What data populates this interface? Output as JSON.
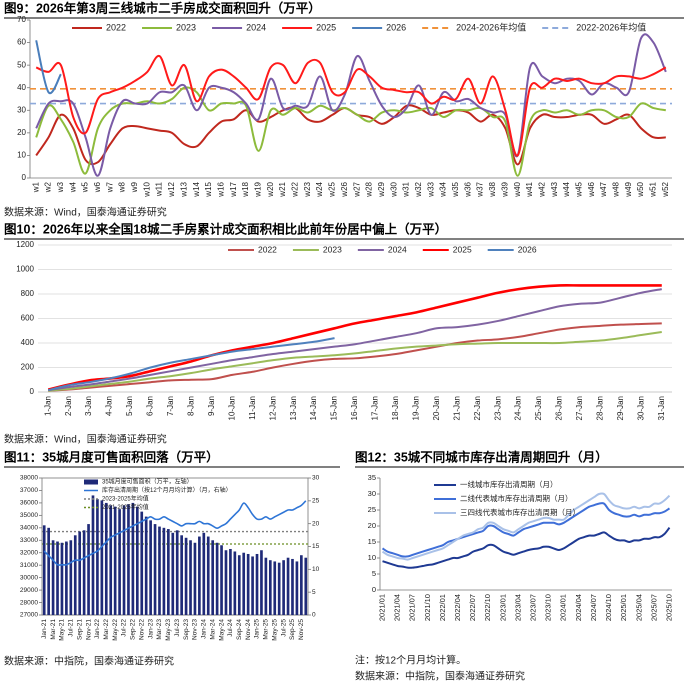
{
  "chart_data": [
    {
      "type": "line",
      "title": "图9：2026年第3周三线城市二手房成交面积回升（万平）",
      "source": "数据来源：Wind，国泰海通证券研究",
      "categories": [
        "w1",
        "w2",
        "w3",
        "w4",
        "w5",
        "w6",
        "w7",
        "w8",
        "w9",
        "w10",
        "w11",
        "w12",
        "w13",
        "w14",
        "w15",
        "w16",
        "w17",
        "w18",
        "w19",
        "w20",
        "w21",
        "w22",
        "w23",
        "w24",
        "w25",
        "w26",
        "w27",
        "w28",
        "w29",
        "w30",
        "w31",
        "w32",
        "w33",
        "w34",
        "w35",
        "w36",
        "w37",
        "w38",
        "w39",
        "w40",
        "w41",
        "w42",
        "w43",
        "w44",
        "w45",
        "w46",
        "w47",
        "w48",
        "w49",
        "w50",
        "w51",
        "w52"
      ],
      "ylim": [
        0,
        70
      ],
      "yticks": [
        0,
        10,
        20,
        30,
        40,
        50,
        60,
        70
      ],
      "grid": false,
      "series": [
        {
          "name": "2022",
          "color": "#c0281e",
          "values": [
            10,
            18,
            28,
            22,
            8,
            7,
            15,
            22,
            23,
            22,
            21,
            20,
            15,
            14,
            20,
            25,
            26,
            30,
            25,
            27,
            30,
            31,
            26,
            25,
            28,
            31,
            28,
            27,
            24,
            27,
            32,
            31,
            28,
            29,
            30,
            29,
            25,
            28,
            22,
            6,
            22,
            28,
            27,
            27,
            28,
            28,
            24,
            26,
            28,
            22,
            18,
            18
          ]
        },
        {
          "name": "2023",
          "color": "#8dbb3c",
          "values": [
            18,
            32,
            26,
            16,
            2,
            22,
            30,
            33,
            33,
            34,
            33,
            35,
            40,
            38,
            30,
            33,
            33,
            32,
            12,
            30,
            28,
            31,
            29,
            32,
            30,
            31,
            28,
            25,
            29,
            30,
            29,
            30,
            31,
            27,
            30,
            30,
            31,
            27,
            25,
            1,
            25,
            30,
            29,
            30,
            28,
            30,
            30,
            27,
            27,
            33,
            31,
            30
          ]
        },
        {
          "name": "2024",
          "color": "#7a5ba6",
          "values": [
            22,
            33,
            34,
            33,
            18,
            1,
            22,
            34,
            33,
            33,
            38,
            38,
            41,
            30,
            40,
            40,
            38,
            33,
            26,
            44,
            31,
            32,
            32,
            45,
            30,
            37,
            54,
            43,
            32,
            27,
            31,
            41,
            28,
            38,
            34,
            35,
            31,
            29,
            28,
            10,
            49,
            45,
            42,
            44,
            43,
            37,
            42,
            40,
            38,
            62,
            60,
            47
          ]
        },
        {
          "name": "2025",
          "color": "#ff1a1a",
          "values": [
            49,
            47,
            50,
            27,
            20,
            35,
            38,
            40,
            43,
            47,
            54,
            41,
            50,
            34,
            45,
            48,
            45,
            40,
            35,
            49,
            50,
            42,
            51,
            51,
            38,
            38,
            48,
            45,
            40,
            39,
            38,
            38,
            33,
            36,
            35,
            44,
            33,
            45,
            30,
            10,
            40,
            40,
            44,
            43,
            44,
            42,
            42,
            45,
            45,
            44,
            46,
            49
          ]
        },
        {
          "name": "2026",
          "color": "#4a7ebb",
          "values": [
            61,
            38,
            46,
            null,
            null,
            null,
            null,
            null,
            null,
            null,
            null,
            null,
            null,
            null,
            null,
            null,
            null,
            null,
            null,
            null,
            null,
            null,
            null,
            null,
            null,
            null,
            null,
            null,
            null,
            null,
            null,
            null,
            null,
            null,
            null,
            null,
            null,
            null,
            null,
            null,
            null,
            null,
            null,
            null,
            null,
            null,
            null,
            null,
            null,
            null,
            null,
            null
          ]
        }
      ],
      "reference_lines": [
        {
          "name": "2024-2026年均值",
          "color": "#f0923a",
          "style": "dashed",
          "value": 39.5
        },
        {
          "name": "2022-2026年均值",
          "color": "#8eaadb",
          "style": "dashed",
          "value": 33
        }
      ]
    },
    {
      "type": "line",
      "title": "图10：2026年以来全国18城二手房累计成交面积相比此前年份居中偏上（万平）",
      "source": "数据来源：Wind，国泰海通证券研究",
      "categories": [
        "1-Jan",
        "2-Jan",
        "3-Jan",
        "4-Jan",
        "5-Jan",
        "6-Jan",
        "7-Jan",
        "8-Jan",
        "9-Jan",
        "10-Jan",
        "11-Jan",
        "12-Jan",
        "13-Jan",
        "14-Jan",
        "15-Jan",
        "16-Jan",
        "17-Jan",
        "18-Jan",
        "19-Jan",
        "20-Jan",
        "21-Jan",
        "22-Jan",
        "23-Jan",
        "24-Jan",
        "25-Jan",
        "26-Jan",
        "27-Jan",
        "28-Jan",
        "29-Jan",
        "30-Jan",
        "31-Jan"
      ],
      "ylim": [
        0,
        1200
      ],
      "yticks": [
        0,
        200,
        400,
        600,
        800,
        1000,
        1200
      ],
      "grid": true,
      "series": [
        {
          "name": "2022",
          "color": "#c0504d",
          "values": [
            10,
            20,
            35,
            50,
            65,
            80,
            95,
            100,
            105,
            140,
            165,
            200,
            230,
            255,
            270,
            275,
            290,
            310,
            340,
            370,
            400,
            420,
            430,
            450,
            480,
            510,
            530,
            540,
            550,
            555,
            560
          ]
        },
        {
          "name": "2023",
          "color": "#9bbb59",
          "values": [
            10,
            25,
            45,
            65,
            85,
            110,
            130,
            155,
            185,
            210,
            235,
            260,
            280,
            290,
            300,
            315,
            335,
            355,
            370,
            380,
            390,
            395,
            400,
            400,
            400,
            400,
            410,
            420,
            440,
            465,
            490
          ]
        },
        {
          "name": "2024",
          "color": "#8064a2",
          "values": [
            15,
            40,
            60,
            85,
            110,
            140,
            170,
            200,
            230,
            260,
            285,
            310,
            330,
            350,
            370,
            390,
            420,
            450,
            480,
            520,
            530,
            550,
            580,
            620,
            660,
            700,
            720,
            730,
            770,
            810,
            840
          ]
        },
        {
          "name": "2025",
          "color": "#ff0000",
          "values": [
            20,
            60,
            95,
            110,
            130,
            170,
            210,
            250,
            300,
            340,
            370,
            400,
            440,
            480,
            520,
            560,
            590,
            620,
            650,
            690,
            730,
            770,
            810,
            840,
            860,
            870,
            870,
            870,
            870,
            870,
            870
          ]
        },
        {
          "name": "2026",
          "color": "#4f81bd",
          "values": [
            15,
            55,
            80,
            110,
            150,
            200,
            240,
            270,
            300,
            330,
            350,
            370,
            390,
            410,
            440,
            null,
            null,
            null,
            null,
            null,
            null,
            null,
            null,
            null,
            null,
            null,
            null,
            null,
            null,
            null,
            null
          ]
        }
      ]
    },
    {
      "type": "bar",
      "title": "图11：35城月度可售面积回落（万平）",
      "source": "数据来源：中指院，国泰海通证券研究",
      "categories": [
        "Jan-21",
        null,
        "Mar-21",
        null,
        "May-21",
        null,
        "Jul-21",
        null,
        "Sep-21",
        null,
        "Nov-21",
        null,
        "Jan-22",
        null,
        "Mar-22",
        null,
        "May-22",
        null,
        "Jul-22",
        null,
        "Sep-22",
        null,
        "Nov-22",
        null,
        "Jan-23",
        null,
        "Mar-23",
        null,
        "May-23",
        null,
        "Jul-23",
        null,
        "Sep-23",
        null,
        "Nov-23",
        null,
        "Jan-24",
        null,
        "Mar-24",
        null,
        "May-24",
        null,
        "Jul-24",
        null,
        "Sep-24",
        null,
        "Nov-24",
        null,
        "Jan-25",
        null,
        "Mar-25",
        null,
        "May-25",
        null,
        "Jul-25",
        null,
        "Sep-25",
        null,
        "Nov-25",
        null
      ],
      "ylim": [
        27000,
        38000
      ],
      "yticks": [
        27000,
        28000,
        29000,
        30000,
        31000,
        32000,
        33000,
        34000,
        35000,
        36000,
        37000,
        38000
      ],
      "y2lim": [
        0,
        30
      ],
      "y2ticks": [
        0,
        5,
        10,
        15,
        20,
        25,
        30
      ],
      "grid": false,
      "series": [
        {
          "name": "35城月度可售面积（万平，左轴）",
          "type": "bar",
          "color": "#1f2a78",
          "values": [
            34200,
            34000,
            33000,
            32900,
            32800,
            32900,
            33000,
            33400,
            33700,
            33800,
            34300,
            36600,
            36300,
            36200,
            36000,
            35800,
            35700,
            35500,
            35800,
            35900,
            36000,
            35700,
            35300,
            34900,
            34600,
            34300,
            34100,
            34000,
            33900,
            33600,
            33800,
            33400,
            33200,
            33000,
            32800,
            33300,
            33600,
            33300,
            33000,
            32800,
            32600,
            32200,
            32300,
            32100,
            31800,
            32000,
            31900,
            31700,
            31900,
            32200,
            31600,
            31400,
            31300,
            31200,
            31400,
            31600,
            31500,
            31300,
            31800,
            31600
          ]
        },
        {
          "name": "库存出清周期（按12个月月均计算）（月，右轴）",
          "type": "line",
          "axis": "y2",
          "color": "#2e75d6",
          "values": [
            14,
            13,
            12,
            11,
            11,
            11,
            11.5,
            12,
            12,
            12.5,
            13,
            13.5,
            14,
            15,
            16,
            17,
            17.5,
            18,
            18.5,
            19,
            19.5,
            20,
            20.5,
            21,
            21.5,
            21,
            21,
            21.5,
            21,
            20.5,
            20,
            19.5,
            20,
            20,
            20,
            20.5,
            20,
            20,
            19.5,
            19,
            19.5,
            20,
            21,
            22,
            23,
            24.5,
            23.5,
            22,
            21,
            21,
            21.5,
            21,
            21.5,
            22,
            22.5,
            23,
            23,
            23.5,
            24,
            25
          ]
        }
      ],
      "reference_lines": [
        {
          "name": "2023-2025年均值",
          "color": "#7f7f7f",
          "style": "dotted",
          "value": 33700
        },
        {
          "name": "2021-2025年均值",
          "color": "#6b8e23",
          "style": "dotted",
          "value": 32700
        }
      ]
    },
    {
      "type": "line",
      "title": "图12：35城不同城市库存出清周期回升（月）",
      "note": "注：按12个月月均计算。",
      "source": "数据来源：中指院，国泰海通证券研究",
      "categories": [
        "2021/01",
        null,
        null,
        "2021/04",
        null,
        null,
        "2021/07",
        null,
        null,
        "2021/10",
        null,
        null,
        "2022/01",
        null,
        null,
        "2022/04",
        null,
        null,
        "2022/07",
        null,
        null,
        "2022/10",
        null,
        null,
        "2023/01",
        null,
        null,
        "2023/04",
        null,
        null,
        "2023/07",
        null,
        null,
        "2023/10",
        null,
        null,
        "2024/01",
        null,
        null,
        "2024/04",
        null,
        null,
        "2024/07",
        null,
        null,
        "2024/10",
        null,
        null,
        "2025/01",
        null,
        null,
        "2025/04",
        null,
        null,
        "2025/07",
        null,
        null,
        "2025/10"
      ],
      "ylim": [
        0,
        35
      ],
      "yticks": [
        0,
        5,
        10,
        15,
        20,
        25,
        30,
        35
      ],
      "grid": false,
      "series": [
        {
          "name": "一线城市库存出清周期（月）",
          "color": "#1f3a93",
          "values": [
            9,
            8.5,
            8,
            7.5,
            7.3,
            7,
            7,
            7.2,
            7.5,
            7.8,
            8,
            8.5,
            9,
            9.5,
            10,
            10,
            10.5,
            11,
            12,
            12.5,
            13,
            14,
            14,
            13,
            12,
            11.5,
            11,
            11.5,
            12,
            12.5,
            12.8,
            13,
            13.5,
            13.5,
            13,
            12.5,
            13,
            14,
            15,
            16,
            16.5,
            17,
            17,
            17.5,
            18,
            17,
            16,
            15.5,
            15.5,
            15,
            15.5,
            15.5,
            16,
            16,
            16.5,
            16.5,
            17.5,
            19.5
          ]
        },
        {
          "name": "二线代表城市库存出清周期（月）",
          "color": "#3f6fd8",
          "values": [
            13,
            12,
            11.5,
            11,
            10.5,
            10.5,
            11,
            11.5,
            12,
            12.5,
            13,
            13.5,
            14,
            15,
            15.5,
            16,
            16.5,
            17,
            17.5,
            18,
            18.5,
            20,
            20,
            19,
            18,
            17.5,
            17,
            18,
            19,
            19.5,
            20,
            20.5,
            21,
            21,
            21,
            20.5,
            21,
            22,
            23,
            24,
            25,
            26,
            26.5,
            27,
            27,
            25,
            24,
            23.5,
            23,
            23,
            23.5,
            23,
            23.5,
            23.5,
            24,
            24,
            24.5,
            25.5
          ]
        },
        {
          "name": "三四线代表城市库存出清周期（月）",
          "color": "#a9c1e8",
          "values": [
            12,
            11,
            10.5,
            10,
            9.8,
            9.5,
            10,
            10.5,
            11,
            11.5,
            12,
            12.5,
            13,
            14,
            15,
            16,
            17,
            17.5,
            18,
            19,
            19.5,
            21,
            21,
            20,
            19,
            18.5,
            18,
            19,
            20,
            21,
            21.5,
            22,
            22.5,
            22.5,
            22,
            22,
            22,
            23.5,
            25,
            26,
            27,
            28,
            29,
            30,
            30,
            28,
            26.5,
            26,
            25.5,
            25.5,
            26,
            25.5,
            26,
            26,
            27,
            27,
            28,
            29.5
          ]
        }
      ]
    }
  ]
}
